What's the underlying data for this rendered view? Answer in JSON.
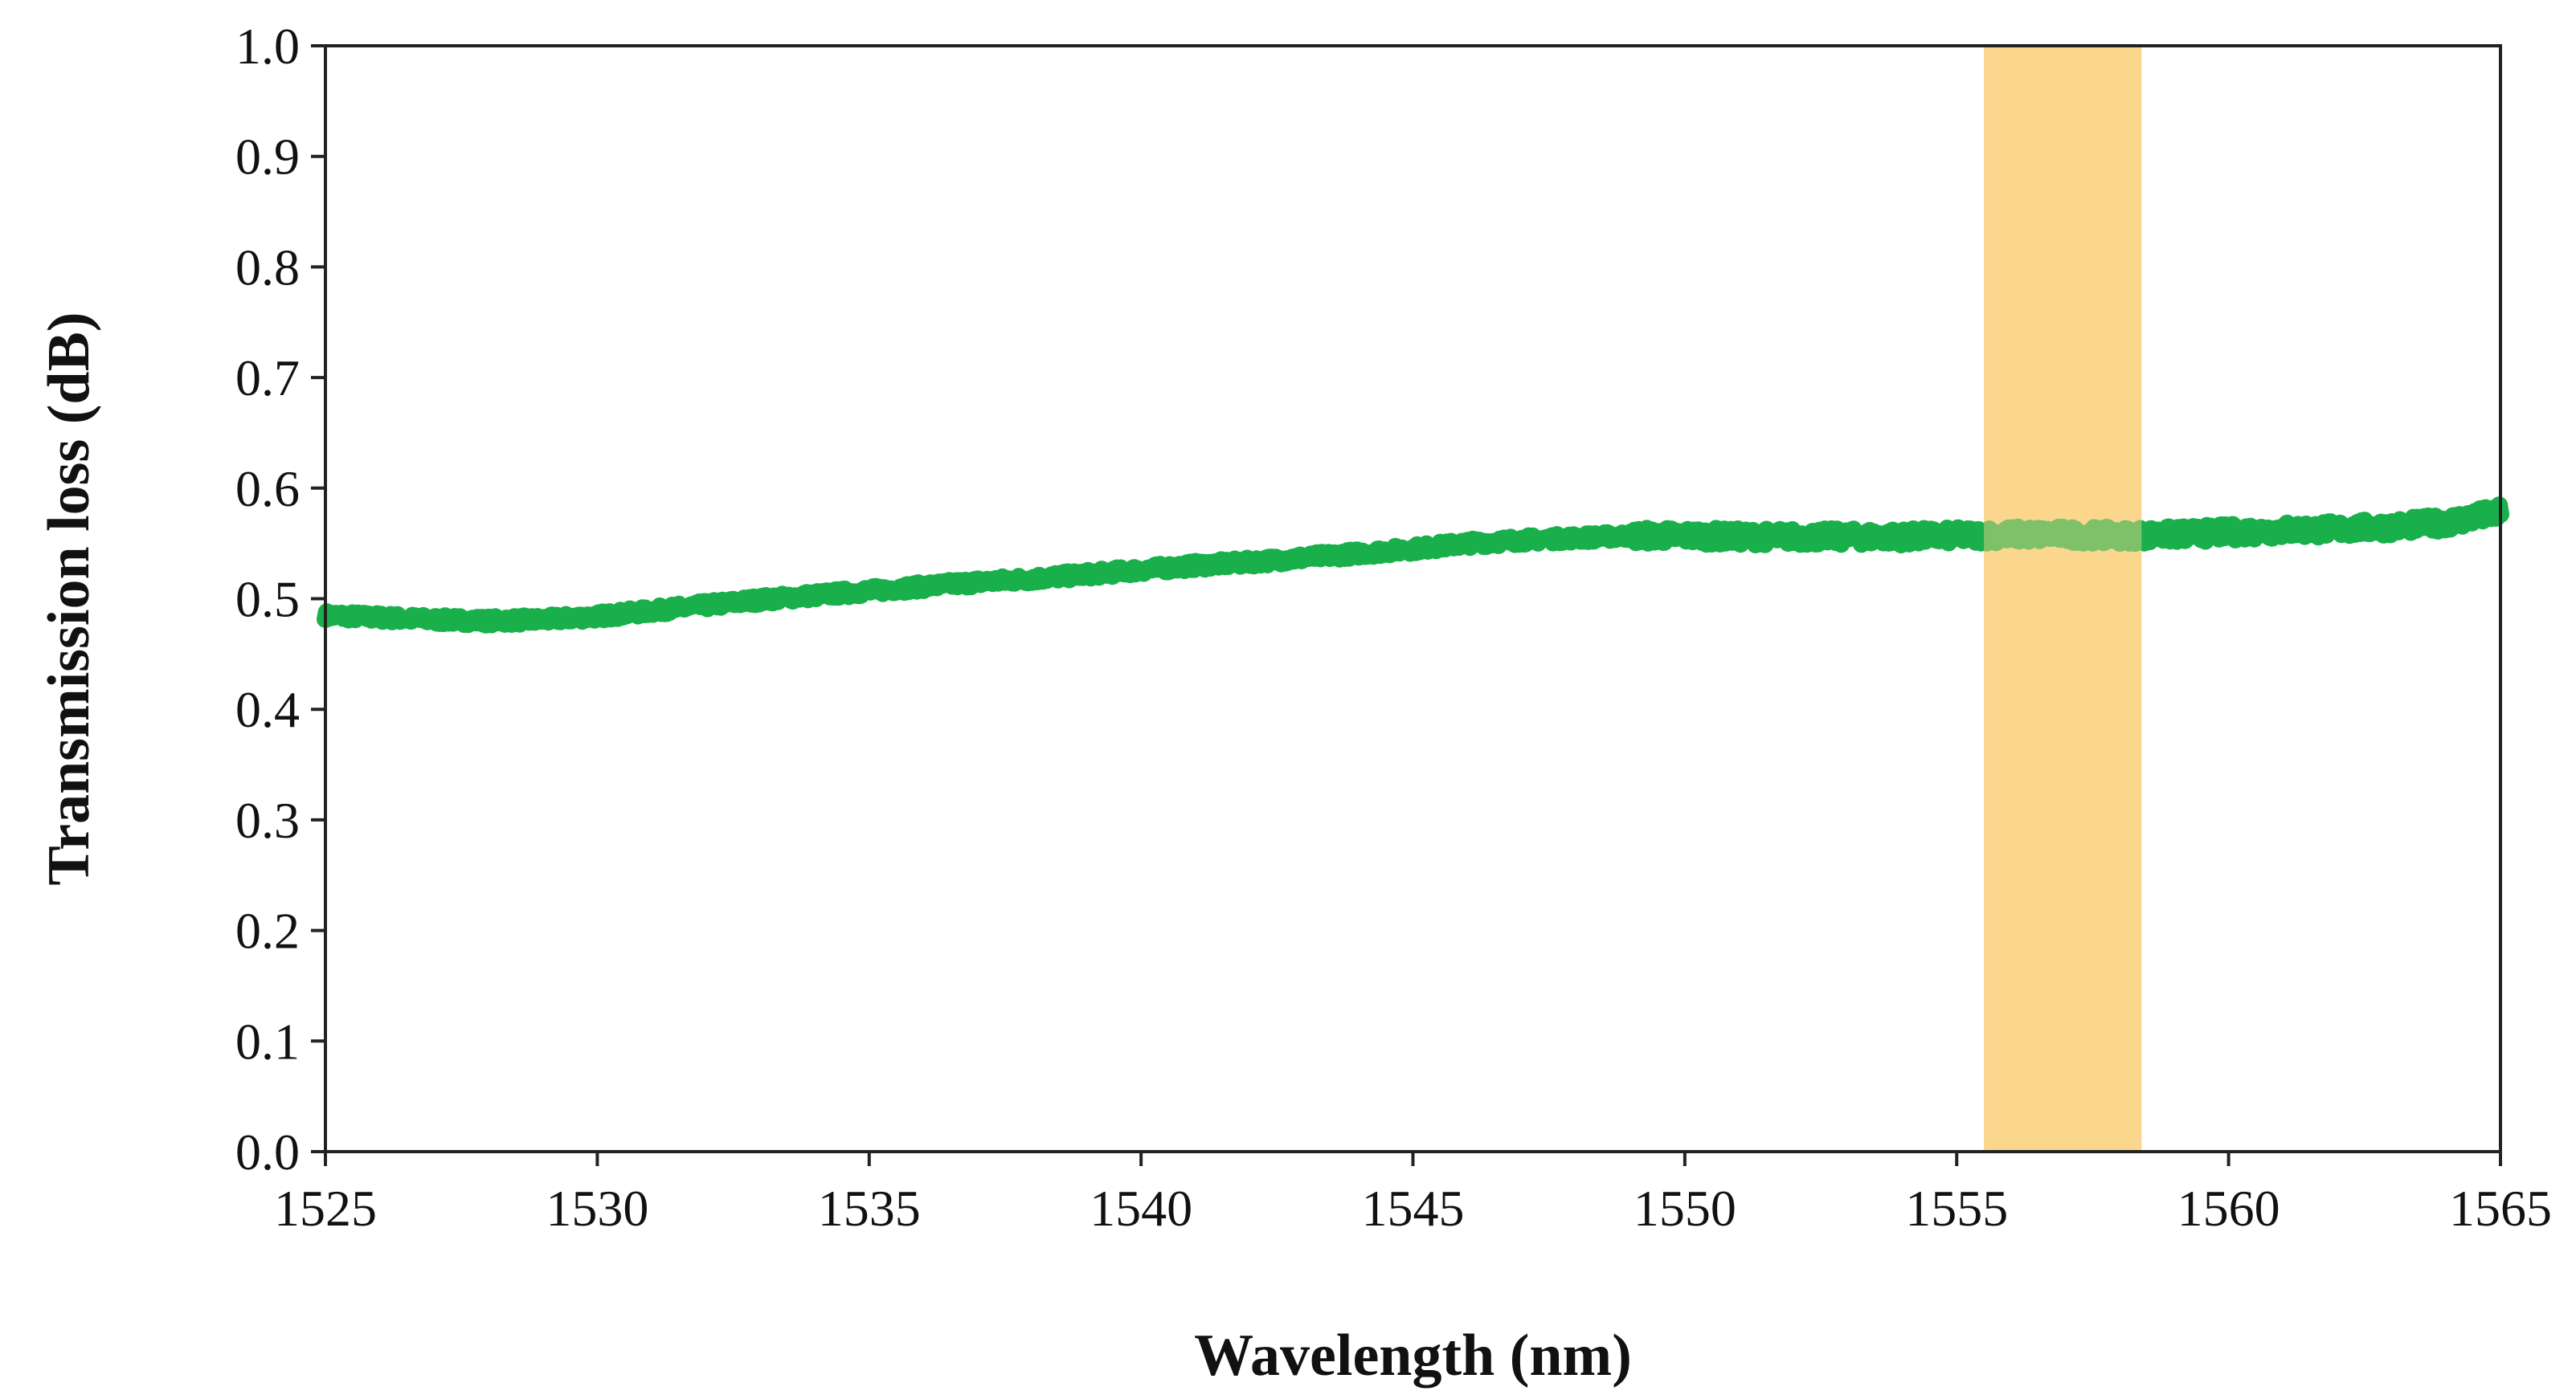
{
  "chart_data": {
    "type": "line",
    "title": "",
    "xlabel": "Wavelength (nm)",
    "ylabel": "Transmission loss (dB)",
    "xlim": [
      1525,
      1565
    ],
    "ylim": [
      0.0,
      1.0
    ],
    "x_ticks": [
      "1525",
      "1530",
      "1535",
      "1540",
      "1545",
      "1550",
      "1555",
      "1560",
      "1565"
    ],
    "y_ticks": [
      "0.0",
      "0.1",
      "0.2",
      "0.3",
      "0.4",
      "0.5",
      "0.6",
      "0.7",
      "0.8",
      "0.9",
      "1.0"
    ],
    "grid": false,
    "legend": "none",
    "highlight_band": {
      "x_start": 1555.5,
      "x_end": 1558.4,
      "color": "#FBD78E"
    },
    "series": [
      {
        "name": "Transmission loss",
        "color": "#19B04B",
        "x": [
          1525,
          1526,
          1527,
          1528,
          1529,
          1530,
          1531,
          1532,
          1533,
          1534,
          1535,
          1536,
          1537,
          1538,
          1539,
          1540,
          1541,
          1542,
          1543,
          1544,
          1545,
          1546,
          1547,
          1548,
          1549,
          1550,
          1551,
          1552,
          1553,
          1554,
          1555,
          1556,
          1557,
          1558,
          1559,
          1560,
          1561,
          1562,
          1563,
          1564,
          1565
        ],
        "y": [
          0.485,
          0.483,
          0.481,
          0.48,
          0.481,
          0.484,
          0.489,
          0.494,
          0.499,
          0.503,
          0.507,
          0.511,
          0.515,
          0.518,
          0.522,
          0.526,
          0.53,
          0.533,
          0.537,
          0.541,
          0.545,
          0.55,
          0.553,
          0.555,
          0.557,
          0.557,
          0.556,
          0.556,
          0.556,
          0.556,
          0.557,
          0.558,
          0.558,
          0.557,
          0.558,
          0.56,
          0.562,
          0.563,
          0.565,
          0.569,
          0.578
        ]
      }
    ]
  }
}
